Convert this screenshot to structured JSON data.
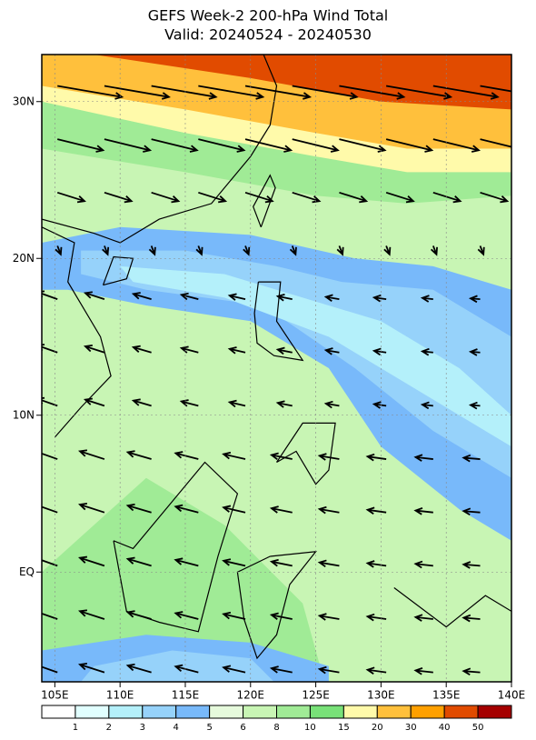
{
  "header": {
    "title": "GEFS Week-2 200-hPa Wind Total",
    "subtitle": "Valid: 20240524 - 20240530"
  },
  "map": {
    "lon_labels": [
      "105E",
      "110E",
      "115E",
      "120E",
      "125E",
      "130E",
      "135E",
      "140E"
    ],
    "lat_labels": [
      "30N",
      "20N",
      "10N",
      "EQ"
    ]
  },
  "colorbar": {
    "levels": [
      1,
      2,
      3,
      4,
      5,
      6,
      8,
      10,
      15,
      20,
      30,
      40,
      50
    ],
    "colors": [
      "#ffffff",
      "#e1ffff",
      "#b4f0fa",
      "#96d2fa",
      "#78b9fa",
      "#e6fadc",
      "#c8f5b4",
      "#a0eb96",
      "#78e178",
      "#fffaaa",
      "#ffc03c",
      "#ffa000",
      "#e14b00",
      "#a50000"
    ]
  }
}
